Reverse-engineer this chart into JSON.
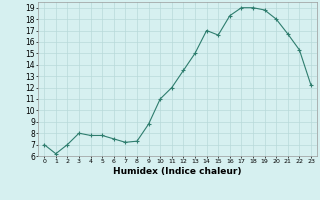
{
  "x": [
    0,
    1,
    2,
    3,
    4,
    5,
    6,
    7,
    8,
    9,
    10,
    11,
    12,
    13,
    14,
    15,
    16,
    17,
    18,
    19,
    20,
    21,
    22,
    23
  ],
  "y": [
    7,
    6.2,
    7,
    8,
    7.8,
    7.8,
    7.5,
    7.2,
    7.3,
    8.8,
    11,
    12,
    13.5,
    15,
    17,
    16.6,
    18.3,
    19,
    19,
    18.8,
    18,
    16.7,
    15.3,
    12.2
  ],
  "xlabel": "Humidex (Indice chaleur)",
  "ylim": [
    6,
    19.5
  ],
  "yticks": [
    6,
    7,
    8,
    9,
    10,
    11,
    12,
    13,
    14,
    15,
    16,
    17,
    18,
    19
  ],
  "xticks": [
    0,
    1,
    2,
    3,
    4,
    5,
    6,
    7,
    8,
    9,
    10,
    11,
    12,
    13,
    14,
    15,
    16,
    17,
    18,
    19,
    20,
    21,
    22,
    23
  ],
  "line_color": "#2e7d6e",
  "bg_color": "#d6f0f0",
  "grid_color": "#b8dada",
  "marker": "+"
}
